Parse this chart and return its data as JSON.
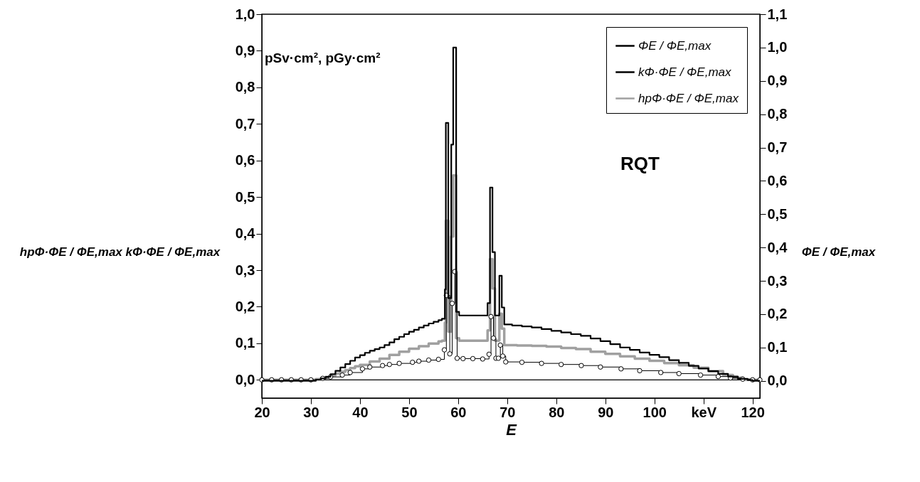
{
  "chart_data": {
    "type": "step",
    "xlabel": "E",
    "ylabel": "hpΦ·ΦE / ΦE,max    kΦ·ΦE / ΦE,max",
    "y2label": "ΦE / ΦE,max",
    "annotations": [
      "pSv·cm², pGy·cm²",
      "RQT"
    ],
    "xlim": [
      20,
      121.5
    ],
    "xticks": [
      20,
      30,
      40,
      50,
      60,
      70,
      80,
      90,
      100,
      {
        "value": 110,
        "label": "keV"
      },
      120
    ],
    "ylim": [
      -0.05,
      1.0
    ],
    "yticks": [
      {
        "value": 0,
        "label": "0,0"
      },
      {
        "value": 0.1,
        "label": "0,1"
      },
      {
        "value": 0.2,
        "label": "0,2"
      },
      {
        "value": 0.3,
        "label": "0,3"
      },
      {
        "value": 0.4,
        "label": "0,4"
      },
      {
        "value": 0.5,
        "label": "0,5"
      },
      {
        "value": 0.6,
        "label": "0,6"
      },
      {
        "value": 0.7,
        "label": "0,7"
      },
      {
        "value": 0.8,
        "label": "0,8"
      },
      {
        "value": 0.9,
        "label": "0,9"
      },
      {
        "value": 1.0,
        "label": "1,0"
      }
    ],
    "y2lim": [
      -0.052,
      1.1
    ],
    "y2ticks": [
      {
        "value": 0,
        "label": "0,0"
      },
      {
        "value": 0.1,
        "label": "0,1"
      },
      {
        "value": 0.2,
        "label": "0,2"
      },
      {
        "value": 0.3,
        "label": "0,3"
      },
      {
        "value": 0.4,
        "label": "0,4"
      },
      {
        "value": 0.5,
        "label": "0,5"
      },
      {
        "value": 0.6,
        "label": "0,6"
      },
      {
        "value": 0.7,
        "label": "0,7"
      },
      {
        "value": 0.8,
        "label": "0,8"
      },
      {
        "value": 0.9,
        "label": "0,9"
      },
      {
        "value": 1.0,
        "label": "1,0"
      },
      {
        "value": 1.1,
        "label": "1,1"
      }
    ],
    "grid": false,
    "legend": "top right",
    "line_style": "solid",
    "ref_lines": [
      {
        "axis": "y",
        "value": 0,
        "color": "#000000"
      }
    ],
    "series": [
      {
        "name": "ΦE / ΦE,max",
        "color": "#000000",
        "axis": "y2",
        "marker": "none",
        "x": [
          20,
          30,
          31,
          32,
          33,
          34,
          35,
          36,
          37,
          38,
          39,
          40,
          41,
          42,
          43,
          44,
          45,
          46,
          47,
          48,
          49,
          50,
          51,
          52,
          53,
          54,
          55,
          56,
          56.7,
          57.3,
          57.5,
          58.0,
          58.6,
          59.0,
          59.6,
          60.2,
          66.0,
          66.5,
          67.0,
          67.5,
          68.4,
          68.9,
          69.4,
          71,
          73,
          75,
          77,
          79,
          81,
          83,
          85,
          87,
          89,
          91,
          93,
          95,
          97,
          99,
          101,
          103,
          105,
          107,
          109,
          111,
          113,
          115,
          117,
          119,
          120,
          121.5
        ],
        "values": [
          0,
          0,
          0.003,
          0.007,
          0.012,
          0.02,
          0.03,
          0.04,
          0.05,
          0.06,
          0.07,
          0.077,
          0.084,
          0.09,
          0.095,
          0.1,
          0.107,
          0.115,
          0.125,
          0.132,
          0.14,
          0.147,
          0.153,
          0.16,
          0.166,
          0.172,
          0.177,
          0.182,
          0.186,
          0.274,
          0.774,
          0.248,
          0.709,
          1.0,
          0.207,
          0.196,
          0.233,
          0.58,
          0.386,
          0.196,
          0.315,
          0.22,
          0.169,
          0.166,
          0.163,
          0.16,
          0.155,
          0.15,
          0.145,
          0.14,
          0.135,
          0.127,
          0.119,
          0.11,
          0.1,
          0.093,
          0.085,
          0.078,
          0.071,
          0.062,
          0.054,
          0.045,
          0.037,
          0.029,
          0.021,
          0.013,
          0.006,
          0.002,
          0,
          0
        ]
      },
      {
        "name": "kΦ·ΦE / ΦE,max",
        "color": "#000000",
        "axis": "y",
        "marker": "circle",
        "x": [
          20,
          22,
          24,
          26,
          28,
          30,
          32.4,
          34,
          36.4,
          38,
          40.5,
          42,
          44.6,
          46,
          48,
          50.7,
          52,
          54,
          56,
          57.2,
          57.6,
          58.3,
          58.8,
          59.3,
          59.8,
          61,
          63,
          65,
          66.3,
          66.7,
          67.2,
          67.7,
          68.2,
          68.6,
          69.1,
          69.7,
          73,
          77,
          81,
          85.1,
          89,
          93.2,
          97,
          101.3,
          105,
          109.4,
          113,
          115.5,
          118,
          120,
          121.5
        ],
        "values": [
          0,
          0,
          0,
          0,
          0,
          0,
          0.004,
          0.008,
          0.013,
          0.02,
          0.03,
          0.035,
          0.039,
          0.042,
          0.045,
          0.048,
          0.051,
          0.054,
          0.056,
          0.082,
          0.231,
          0.071,
          0.209,
          0.296,
          0.059,
          0.058,
          0.058,
          0.057,
          0.07,
          0.173,
          0.114,
          0.059,
          0.059,
          0.095,
          0.065,
          0.049,
          0.048,
          0.045,
          0.042,
          0.039,
          0.035,
          0.03,
          0.025,
          0.02,
          0.017,
          0.013,
          0.009,
          0.005,
          0.002,
          0,
          0
        ]
      },
      {
        "name": "hpΦ·ΦE / ΦE,max",
        "color": "#a0a0a0",
        "axis": "y",
        "marker": "none",
        "x": [
          20,
          30,
          31,
          32,
          33,
          34,
          35,
          36,
          37,
          38,
          39,
          40,
          42,
          44,
          46,
          48,
          50,
          52,
          54,
          56,
          56.7,
          57.3,
          57.5,
          58.0,
          58.6,
          59.0,
          59.6,
          60.2,
          66.0,
          66.5,
          67.0,
          67.5,
          68.4,
          68.9,
          69.4,
          72,
          75,
          78,
          81,
          84,
          87,
          90,
          93,
          96,
          99,
          102,
          105,
          108,
          111,
          114,
          116,
          118,
          121.5
        ],
        "values": [
          0,
          0,
          0.002,
          0.004,
          0.008,
          0.012,
          0.017,
          0.022,
          0.027,
          0.032,
          0.037,
          0.041,
          0.05,
          0.058,
          0.068,
          0.077,
          0.085,
          0.092,
          0.099,
          0.105,
          0.107,
          0.156,
          0.435,
          0.132,
          0.392,
          0.559,
          0.114,
          0.107,
          0.135,
          0.33,
          0.25,
          0.107,
          0.181,
          0.14,
          0.095,
          0.094,
          0.093,
          0.091,
          0.087,
          0.084,
          0.077,
          0.071,
          0.064,
          0.058,
          0.052,
          0.046,
          0.04,
          0.033,
          0.024,
          0.013,
          0.006,
          0,
          0
        ]
      }
    ]
  }
}
